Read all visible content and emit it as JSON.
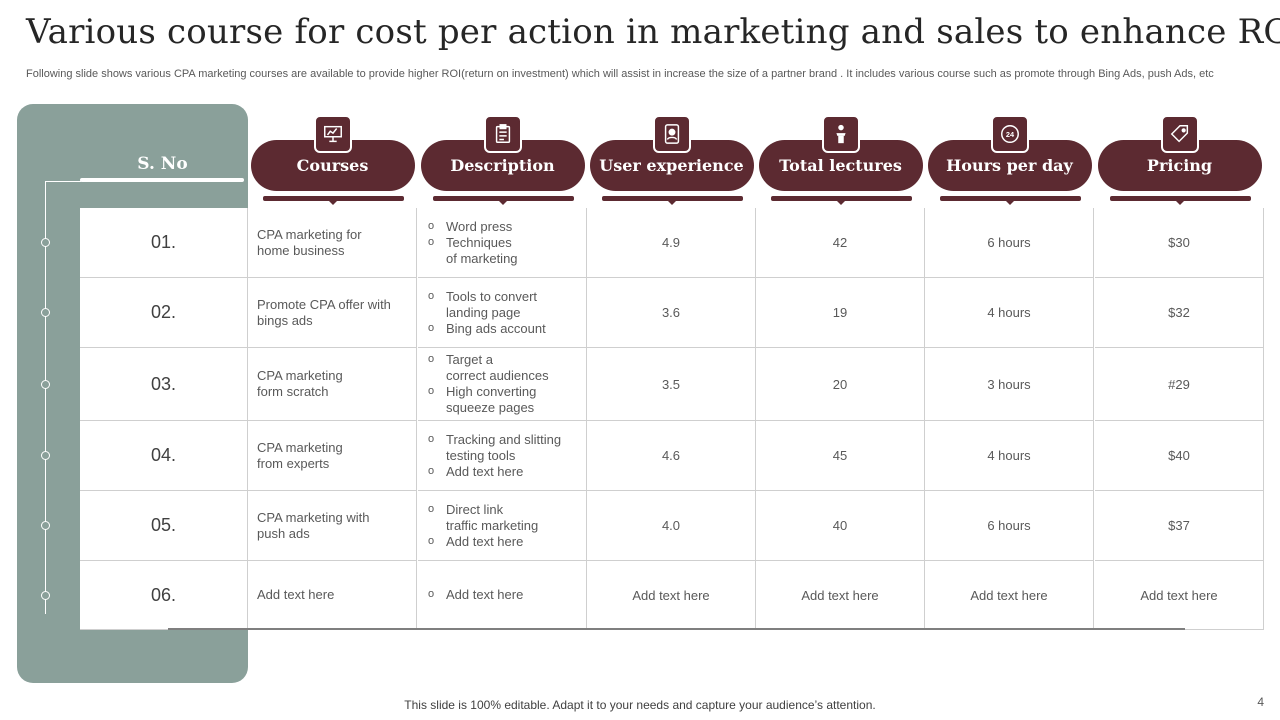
{
  "title": "Various course for cost per action in marketing and sales to enhance ROI",
  "subtitle": "Following slide shows various CPA marketing courses are available to provide higher ROI(return on investment) which will assist in increase the size of a partner brand . It includes various course such as promote through Bing Ads, push Ads, etc",
  "sno_label": "S. No",
  "headers": [
    {
      "label": "Courses",
      "icon": "presentation-board-icon"
    },
    {
      "label": "Description",
      "icon": "clipboard-checklist-icon"
    },
    {
      "label": "User experience",
      "icon": "tablet-user-icon"
    },
    {
      "label": "Total lectures",
      "icon": "lecturer-podium-icon"
    },
    {
      "label": "Hours per day",
      "icon": "24-hours-clock-icon"
    },
    {
      "label": "Pricing",
      "icon": "price-tag-icon"
    }
  ],
  "rows": [
    {
      "num": "01.",
      "course": "CPA marketing for\nhome business",
      "desc": [
        " Word press",
        "Techniques\nof marketing"
      ],
      "ux": "4.9",
      "lectures": "42",
      "hours": "6 hours",
      "price": "$30"
    },
    {
      "num": "02.",
      "course": "Promote CPA offer with\nbings ads",
      "desc": [
        "Tools to convert\nlanding page",
        "Bing ads account"
      ],
      "ux": "3.6",
      "lectures": "19",
      "hours": "4 hours",
      "price": "$32"
    },
    {
      "num": "03.",
      "course": "CPA marketing\nform scratch",
      "desc": [
        "Target a\ncorrect audiences",
        "High converting\nsqueeze pages"
      ],
      "ux": "3.5",
      "lectures": "20",
      "hours": "3 hours",
      "price": "#29"
    },
    {
      "num": "04.",
      "course": "CPA marketing\nfrom experts",
      "desc": [
        "Tracking and slitting\ntesting tools",
        "Add text here"
      ],
      "ux": "4.6",
      "lectures": "45",
      "hours": "4 hours",
      "price": "$40"
    },
    {
      "num": "05.",
      "course": "CPA marketing with\npush ads",
      "desc": [
        "Direct link\ntraffic marketing",
        "Add text here"
      ],
      "ux": "4.0",
      "lectures": "40",
      "hours": "6 hours",
      "price": "$37"
    },
    {
      "num": "06.",
      "course": "Add text here",
      "desc": [
        "Add text here"
      ],
      "ux": "Add text here",
      "lectures": "Add text here",
      "hours": "Add text here",
      "price": "Add text here"
    }
  ],
  "footer": "This slide is 100% editable. Adapt it to your needs and capture your audience’s attention.",
  "page_number": "4",
  "colors": {
    "accent": "#5c2a31",
    "sidebar": "#8aa09a"
  }
}
